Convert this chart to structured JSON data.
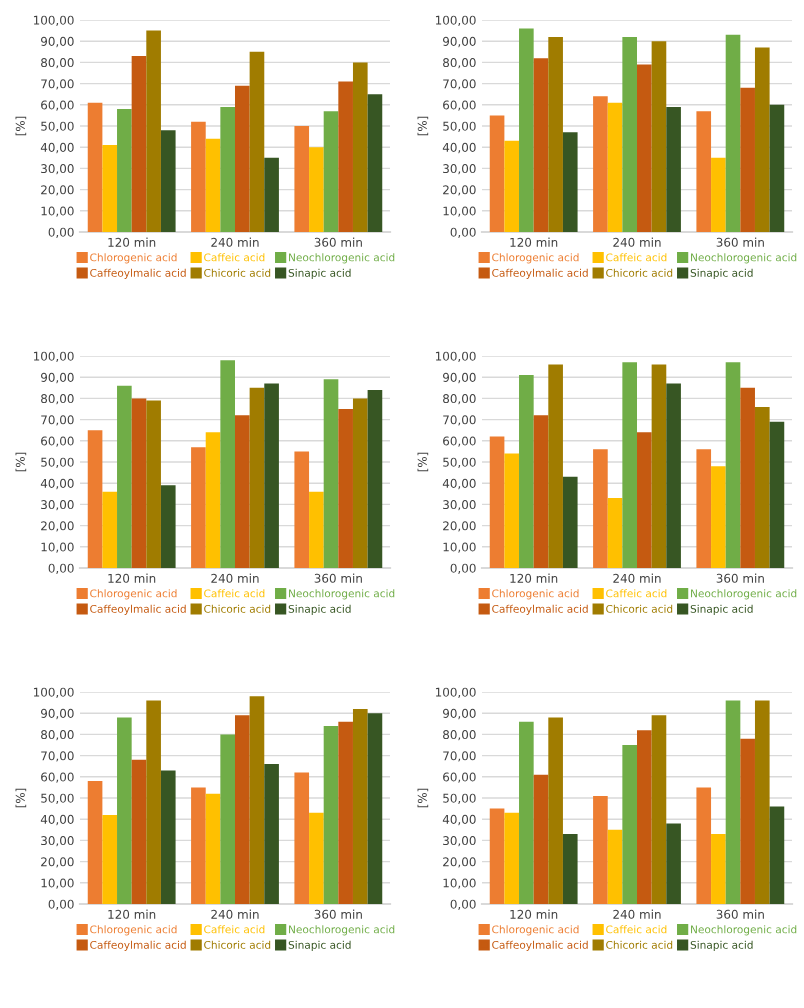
{
  "chart_data": [
    {
      "type": "bar",
      "ylabel": "[%]",
      "categories": [
        "120 min",
        "240 min",
        "360 min"
      ],
      "ylim": [
        0,
        100
      ],
      "yticks": [
        {
          "value": 0,
          "label": "0,00"
        },
        {
          "value": 10,
          "label": "10,00"
        },
        {
          "value": 20,
          "label": "20,00"
        },
        {
          "value": 30,
          "label": "30,00"
        },
        {
          "value": 40,
          "label": "40,00"
        },
        {
          "value": 50,
          "label": "50,00"
        },
        {
          "value": 60,
          "label": "60,00"
        },
        {
          "value": 70,
          "label": "70,00"
        },
        {
          "value": 80,
          "label": "80,00"
        },
        {
          "value": 90,
          "label": "90,00"
        },
        {
          "value": 100,
          "label": "100,00"
        }
      ],
      "grid": "y",
      "legend": "bottom",
      "series": [
        {
          "name": "Chlorogenic acid",
          "color": "#ed7d31",
          "values": [
            61,
            52,
            50
          ]
        },
        {
          "name": "Caffeic acid",
          "color": "#ffc000",
          "values": [
            41,
            44,
            40
          ]
        },
        {
          "name": "Neochlorogenic acid",
          "color": "#70ad47",
          "values": [
            58,
            59,
            57
          ]
        },
        {
          "name": "Caffeoylmalic acid",
          "color": "#c55a11",
          "values": [
            83,
            69,
            71
          ]
        },
        {
          "name": "Chicoric acid",
          "color": "#a07c00",
          "values": [
            95,
            85,
            80
          ]
        },
        {
          "name": "Sinapic acid",
          "color": "#375623",
          "values": [
            48,
            35,
            65
          ]
        }
      ]
    },
    {
      "type": "bar",
      "ylabel": "[%]",
      "categories": [
        "120 min",
        "240 min",
        "360 min"
      ],
      "ylim": [
        0,
        100
      ],
      "yticks": [
        {
          "value": 0,
          "label": "0,00"
        },
        {
          "value": 10,
          "label": "10,00"
        },
        {
          "value": 20,
          "label": "20,00"
        },
        {
          "value": 30,
          "label": "30,00"
        },
        {
          "value": 40,
          "label": "40,00"
        },
        {
          "value": 50,
          "label": "50,00"
        },
        {
          "value": 60,
          "label": "60,00"
        },
        {
          "value": 70,
          "label": "70,00"
        },
        {
          "value": 80,
          "label": "80,00"
        },
        {
          "value": 90,
          "label": "90,00"
        },
        {
          "value": 100,
          "label": "100,00"
        }
      ],
      "grid": "y",
      "legend": "bottom",
      "series": [
        {
          "name": "Chlorogenic acid",
          "color": "#ed7d31",
          "values": [
            55,
            64,
            57
          ]
        },
        {
          "name": "Caffeic acid",
          "color": "#ffc000",
          "values": [
            43,
            61,
            35
          ]
        },
        {
          "name": "Neochlorogenic acid",
          "color": "#70ad47",
          "values": [
            96,
            92,
            93
          ]
        },
        {
          "name": "Caffeoylmalic acid",
          "color": "#c55a11",
          "values": [
            82,
            79,
            68
          ]
        },
        {
          "name": "Chicoric acid",
          "color": "#a07c00",
          "values": [
            92,
            90,
            87
          ]
        },
        {
          "name": "Sinapic acid",
          "color": "#375623",
          "values": [
            47,
            59,
            60
          ]
        }
      ]
    },
    {
      "type": "bar",
      "ylabel": "[%]",
      "categories": [
        "120 min",
        "240 min",
        "360 min"
      ],
      "ylim": [
        0,
        100
      ],
      "yticks": [
        {
          "value": 0,
          "label": "0,00"
        },
        {
          "value": 10,
          "label": "10,00"
        },
        {
          "value": 20,
          "label": "20,00"
        },
        {
          "value": 30,
          "label": "30,00"
        },
        {
          "value": 40,
          "label": "40,00"
        },
        {
          "value": 50,
          "label": "50,00"
        },
        {
          "value": 60,
          "label": "60,00"
        },
        {
          "value": 70,
          "label": "70,00"
        },
        {
          "value": 80,
          "label": "80,00"
        },
        {
          "value": 90,
          "label": "90,00"
        },
        {
          "value": 100,
          "label": "100,00"
        }
      ],
      "grid": "y",
      "legend": "bottom",
      "series": [
        {
          "name": "Chlorogenic acid",
          "color": "#ed7d31",
          "values": [
            65,
            57,
            55
          ]
        },
        {
          "name": "Caffeic acid",
          "color": "#ffc000",
          "values": [
            36,
            64,
            36
          ]
        },
        {
          "name": "Neochlorogenic acid",
          "color": "#70ad47",
          "values": [
            86,
            98,
            89
          ]
        },
        {
          "name": "Caffeoylmalic acid",
          "color": "#c55a11",
          "values": [
            80,
            72,
            75
          ]
        },
        {
          "name": "Chicoric acid",
          "color": "#a07c00",
          "values": [
            79,
            85,
            80
          ]
        },
        {
          "name": "Sinapic acid",
          "color": "#375623",
          "values": [
            39,
            87,
            84
          ]
        }
      ]
    },
    {
      "type": "bar",
      "ylabel": "[%]",
      "categories": [
        "120 min",
        "240 min",
        "360 min"
      ],
      "ylim": [
        0,
        100
      ],
      "yticks": [
        {
          "value": 0,
          "label": "0,00"
        },
        {
          "value": 10,
          "label": "10,00"
        },
        {
          "value": 20,
          "label": "20,00"
        },
        {
          "value": 30,
          "label": "30,00"
        },
        {
          "value": 40,
          "label": "40,00"
        },
        {
          "value": 50,
          "label": "50,00"
        },
        {
          "value": 60,
          "label": "60,00"
        },
        {
          "value": 70,
          "label": "70,00"
        },
        {
          "value": 80,
          "label": "80,00"
        },
        {
          "value": 90,
          "label": "90,00"
        },
        {
          "value": 100,
          "label": "100,00"
        }
      ],
      "grid": "y",
      "legend": "bottom",
      "series": [
        {
          "name": "Chlorogenic acid",
          "color": "#ed7d31",
          "values": [
            62,
            56,
            56
          ]
        },
        {
          "name": "Caffeic acid",
          "color": "#ffc000",
          "values": [
            54,
            33,
            48
          ]
        },
        {
          "name": "Neochlorogenic acid",
          "color": "#70ad47",
          "values": [
            91,
            97,
            97
          ]
        },
        {
          "name": "Caffeoylmalic acid",
          "color": "#c55a11",
          "values": [
            72,
            64,
            85
          ]
        },
        {
          "name": "Chicoric acid",
          "color": "#a07c00",
          "values": [
            96,
            96,
            76
          ]
        },
        {
          "name": "Sinapic acid",
          "color": "#375623",
          "values": [
            43,
            87,
            69
          ]
        }
      ]
    },
    {
      "type": "bar",
      "ylabel": "[%]",
      "categories": [
        "120 min",
        "240 min",
        "360 min"
      ],
      "ylim": [
        0,
        100
      ],
      "yticks": [
        {
          "value": 0,
          "label": "0,00"
        },
        {
          "value": 10,
          "label": "10,00"
        },
        {
          "value": 20,
          "label": "20,00"
        },
        {
          "value": 30,
          "label": "30,00"
        },
        {
          "value": 40,
          "label": "40,00"
        },
        {
          "value": 50,
          "label": "50,00"
        },
        {
          "value": 60,
          "label": "60,00"
        },
        {
          "value": 70,
          "label": "70,00"
        },
        {
          "value": 80,
          "label": "80,00"
        },
        {
          "value": 90,
          "label": "90,00"
        },
        {
          "value": 100,
          "label": "100,00"
        }
      ],
      "grid": "y",
      "legend": "bottom",
      "series": [
        {
          "name": "Chlorogenic acid",
          "color": "#ed7d31",
          "values": [
            58,
            55,
            62
          ]
        },
        {
          "name": "Caffeic acid",
          "color": "#ffc000",
          "values": [
            42,
            52,
            43
          ]
        },
        {
          "name": "Neochlorogenic acid",
          "color": "#70ad47",
          "values": [
            88,
            80,
            84
          ]
        },
        {
          "name": "Caffeoylmalic acid",
          "color": "#c55a11",
          "values": [
            68,
            89,
            86
          ]
        },
        {
          "name": "Chicoric acid",
          "color": "#a07c00",
          "values": [
            96,
            98,
            92
          ]
        },
        {
          "name": "Sinapic acid",
          "color": "#375623",
          "values": [
            63,
            66,
            90
          ]
        }
      ]
    },
    {
      "type": "bar",
      "ylabel": "[%]",
      "categories": [
        "120 min",
        "240 min",
        "360 min"
      ],
      "ylim": [
        0,
        100
      ],
      "yticks": [
        {
          "value": 0,
          "label": "0,00"
        },
        {
          "value": 10,
          "label": "10,00"
        },
        {
          "value": 20,
          "label": "20,00"
        },
        {
          "value": 30,
          "label": "30,00"
        },
        {
          "value": 40,
          "label": "40,00"
        },
        {
          "value": 50,
          "label": "50,00"
        },
        {
          "value": 60,
          "label": "60,00"
        },
        {
          "value": 70,
          "label": "70,00"
        },
        {
          "value": 80,
          "label": "80,00"
        },
        {
          "value": 90,
          "label": "90,00"
        },
        {
          "value": 100,
          "label": "100,00"
        }
      ],
      "grid": "y",
      "legend": "bottom",
      "series": [
        {
          "name": "Chlorogenic acid",
          "color": "#ed7d31",
          "values": [
            45,
            51,
            55
          ]
        },
        {
          "name": "Caffeic acid",
          "color": "#ffc000",
          "values": [
            43,
            35,
            33
          ]
        },
        {
          "name": "Neochlorogenic acid",
          "color": "#70ad47",
          "values": [
            86,
            75,
            96
          ]
        },
        {
          "name": "Caffeoylmalic acid",
          "color": "#c55a11",
          "values": [
            61,
            82,
            78
          ]
        },
        {
          "name": "Chicoric acid",
          "color": "#a07c00",
          "values": [
            88,
            89,
            96
          ]
        },
        {
          "name": "Sinapic acid",
          "color": "#375623",
          "values": [
            33,
            38,
            46
          ]
        }
      ]
    }
  ]
}
